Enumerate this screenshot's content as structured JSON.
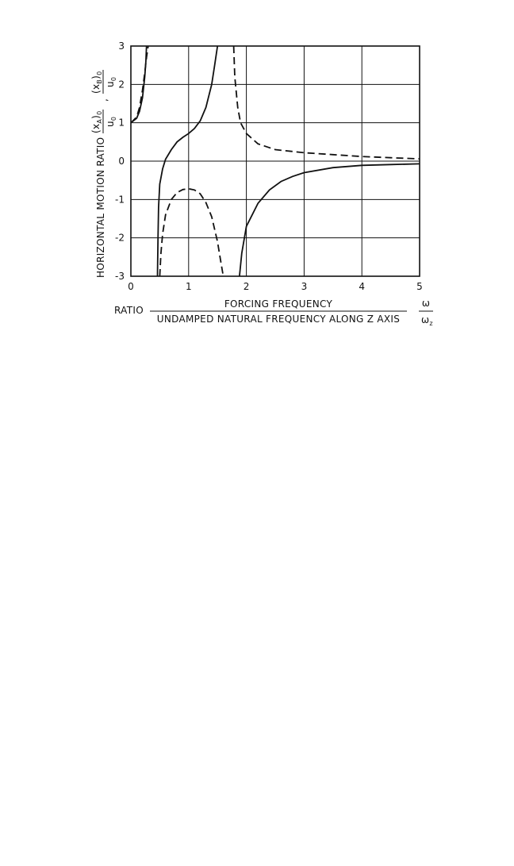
{
  "chart_data": {
    "type": "line",
    "xlabel": {
      "prefix": "RATIO",
      "numerator": "FORCING FREQUENCY",
      "denominator": "UNDAMPED NATURAL FREQUENCY ALONG Z AXIS",
      "symbol_num": "ω",
      "symbol_den": "ω",
      "symbol_den_sub": "z"
    },
    "ylabel": {
      "main": "HORIZONTAL MOTION RATIO",
      "a_num": "(x",
      "a_sub": "A",
      "a_close": ")",
      "a_outer_sub": "0",
      "a_den": "u",
      "a_den_sub": "0",
      "sep": ",",
      "b_num": "(x",
      "b_sub": "B",
      "b_close": ")",
      "b_outer_sub": "0",
      "b_den": "u",
      "b_den_sub": "0"
    },
    "xlim": [
      0,
      5
    ],
    "ylim": [
      -3,
      3
    ],
    "x_ticks": [
      "0",
      "1",
      "2",
      "3",
      "4",
      "5"
    ],
    "y_ticks": [
      "3",
      "2",
      "1",
      "0",
      "-1",
      "-2",
      "-3"
    ],
    "grid": true,
    "series": [
      {
        "style": "solid",
        "segments": [
          [
            [
              0.0,
              1.0
            ],
            [
              0.1,
              1.12
            ],
            [
              0.15,
              1.3
            ],
            [
              0.2,
              1.65
            ],
            [
              0.24,
              2.2
            ],
            [
              0.26,
              2.6
            ],
            [
              0.27,
              3.0
            ]
          ],
          [
            [
              0.46,
              -3.0
            ],
            [
              0.47,
              -2.0
            ],
            [
              0.48,
              -1.2
            ],
            [
              0.5,
              -0.6
            ],
            [
              0.55,
              -0.2
            ],
            [
              0.6,
              0.05
            ],
            [
              0.7,
              0.3
            ],
            [
              0.8,
              0.5
            ],
            [
              0.9,
              0.62
            ],
            [
              1.0,
              0.72
            ],
            [
              1.1,
              0.85
            ],
            [
              1.2,
              1.05
            ],
            [
              1.3,
              1.4
            ],
            [
              1.4,
              2.0
            ],
            [
              1.45,
              2.5
            ],
            [
              1.5,
              3.0
            ]
          ],
          [
            [
              1.88,
              -3.0
            ],
            [
              1.92,
              -2.4
            ],
            [
              2.0,
              -1.7
            ],
            [
              2.2,
              -1.1
            ],
            [
              2.4,
              -0.75
            ],
            [
              2.6,
              -0.53
            ],
            [
              2.8,
              -0.4
            ],
            [
              3.0,
              -0.3
            ],
            [
              3.5,
              -0.17
            ],
            [
              4.0,
              -0.11
            ],
            [
              4.5,
              -0.09
            ],
            [
              5.0,
              -0.07
            ]
          ]
        ]
      },
      {
        "style": "dashed",
        "segments": [
          [
            [
              0.0,
              1.0
            ],
            [
              0.1,
              1.15
            ],
            [
              0.15,
              1.4
            ],
            [
              0.2,
              1.85
            ],
            [
              0.24,
              2.3
            ],
            [
              0.27,
              2.7
            ],
            [
              0.3,
              3.0
            ]
          ],
          [
            [
              0.5,
              -3.0
            ],
            [
              0.52,
              -2.4
            ],
            [
              0.55,
              -1.9
            ],
            [
              0.6,
              -1.4
            ],
            [
              0.7,
              -1.0
            ],
            [
              0.8,
              -0.82
            ],
            [
              0.9,
              -0.74
            ],
            [
              1.0,
              -0.72
            ],
            [
              1.1,
              -0.75
            ],
            [
              1.2,
              -0.85
            ],
            [
              1.3,
              -1.08
            ],
            [
              1.4,
              -1.45
            ],
            [
              1.5,
              -2.1
            ],
            [
              1.55,
              -2.55
            ],
            [
              1.6,
              -3.0
            ]
          ],
          [
            [
              1.78,
              3.0
            ],
            [
              1.8,
              2.2
            ],
            [
              1.85,
              1.4
            ],
            [
              1.9,
              1.0
            ],
            [
              2.0,
              0.72
            ],
            [
              2.2,
              0.45
            ],
            [
              2.5,
              0.3
            ],
            [
              3.0,
              0.22
            ],
            [
              3.5,
              0.17
            ],
            [
              4.0,
              0.12
            ],
            [
              4.5,
              0.09
            ],
            [
              5.0,
              0.06
            ]
          ]
        ]
      }
    ]
  }
}
